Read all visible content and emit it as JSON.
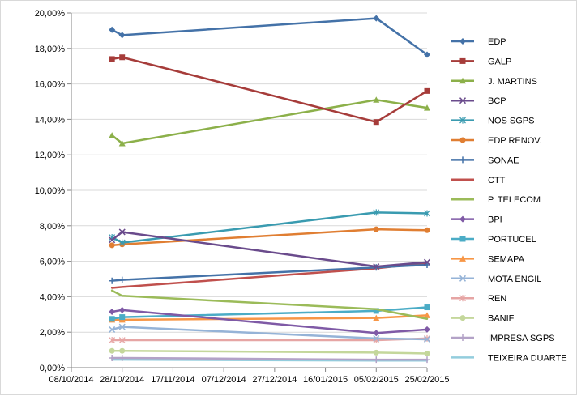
{
  "chart_data": {
    "type": "line",
    "title": "",
    "xlabel": "",
    "ylabel": "",
    "x_tick_labels": [
      "08/10/2014",
      "28/10/2014",
      "17/11/2014",
      "07/12/2014",
      "27/12/2014",
      "16/01/2015",
      "05/02/2015",
      "25/02/2015"
    ],
    "y_tick_labels": [
      "0,00%",
      "2,00%",
      "4,00%",
      "6,00%",
      "8,00%",
      "10,00%",
      "12,00%",
      "14,00%",
      "16,00%",
      "18,00%",
      "20,00%"
    ],
    "xlim": [
      "2014-10-08",
      "2015-02-25"
    ],
    "ylim": [
      0,
      20
    ],
    "grid": "horizontal",
    "legend_position": "right",
    "x": [
      "2014-10-24",
      "2014-10-28",
      "2015-02-05",
      "2015-02-25"
    ],
    "series": [
      {
        "name": "EDP",
        "color": "#4472a8",
        "marker": "diamond",
        "values": [
          19.05,
          18.75,
          19.7,
          17.65
        ]
      },
      {
        "name": "GALP",
        "color": "#a63c3a",
        "marker": "square",
        "values": [
          17.4,
          17.5,
          13.85,
          15.6
        ]
      },
      {
        "name": "J. MARTINS",
        "color": "#8cb04a",
        "marker": "triangle",
        "values": [
          13.1,
          12.65,
          15.1,
          14.65
        ]
      },
      {
        "name": "BCP",
        "color": "#6a4b8c",
        "marker": "x",
        "values": [
          7.2,
          7.65,
          5.7,
          5.95
        ]
      },
      {
        "name": "NOS SGPS",
        "color": "#3a9bb0",
        "marker": "asterisk",
        "values": [
          7.35,
          7.05,
          8.75,
          8.7
        ]
      },
      {
        "name": "EDP RENOV.",
        "color": "#e07e32",
        "marker": "circle",
        "values": [
          6.9,
          6.95,
          7.8,
          7.75
        ]
      },
      {
        "name": "SONAE",
        "color": "#4472a8",
        "marker": "plus",
        "values": [
          4.9,
          4.95,
          5.65,
          5.8
        ]
      },
      {
        "name": "CTT",
        "color": "#c0504d",
        "marker": "none",
        "values": [
          4.5,
          4.55,
          5.6,
          5.9
        ]
      },
      {
        "name": "P. TELECOM",
        "color": "#9bbb59",
        "marker": "none",
        "values": [
          4.35,
          4.05,
          3.3,
          2.75
        ]
      },
      {
        "name": "BPI",
        "color": "#7f5aa6",
        "marker": "diamond",
        "values": [
          3.15,
          3.25,
          1.95,
          2.15
        ]
      },
      {
        "name": "PORTUCEL",
        "color": "#4bacc6",
        "marker": "square",
        "values": [
          2.75,
          2.85,
          3.2,
          3.4
        ]
      },
      {
        "name": "SEMAPA",
        "color": "#f79646",
        "marker": "triangle",
        "values": [
          2.7,
          2.7,
          2.8,
          2.95
        ]
      },
      {
        "name": "MOTA ENGIL",
        "color": "#95b3d7",
        "marker": "x",
        "values": [
          2.15,
          2.3,
          1.65,
          1.6
        ]
      },
      {
        "name": "REN",
        "color": "#e6a5a4",
        "marker": "asterisk",
        "values": [
          1.55,
          1.55,
          1.55,
          1.65
        ]
      },
      {
        "name": "BANIF",
        "color": "#c4d79b",
        "marker": "circle",
        "values": [
          0.95,
          0.95,
          0.85,
          0.8
        ]
      },
      {
        "name": "IMPRESA SGPS",
        "color": "#b3a2c7",
        "marker": "plus",
        "values": [
          0.55,
          0.55,
          0.45,
          0.45
        ]
      },
      {
        "name": "TEIXEIRA DUARTE",
        "color": "#93cddd",
        "marker": "none",
        "values": [
          0.45,
          0.45,
          0.4,
          0.4
        ]
      }
    ]
  }
}
